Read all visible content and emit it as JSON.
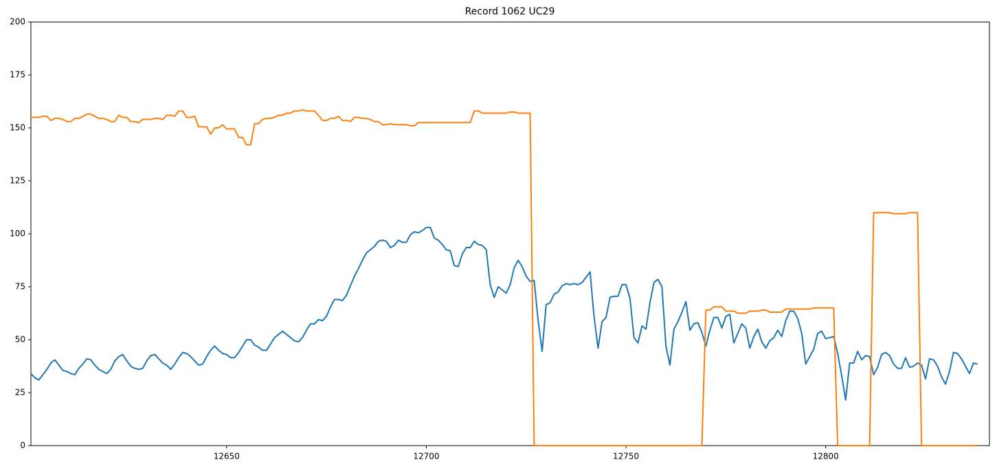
{
  "chart_data": {
    "type": "line",
    "title": "Record 1062 UC29",
    "x": [
      12601,
      12602,
      12603,
      12604,
      12605,
      12606,
      12607,
      12608,
      12609,
      12610,
      12611,
      12612,
      12613,
      12614,
      12615,
      12616,
      12617,
      12618,
      12619,
      12620,
      12621,
      12622,
      12623,
      12624,
      12625,
      12626,
      12627,
      12628,
      12629,
      12630,
      12631,
      12632,
      12633,
      12634,
      12635,
      12636,
      12637,
      12638,
      12639,
      12640,
      12641,
      12642,
      12643,
      12644,
      12645,
      12646,
      12647,
      12648,
      12649,
      12650,
      12651,
      12652,
      12653,
      12654,
      12655,
      12656,
      12657,
      12658,
      12659,
      12660,
      12661,
      12662,
      12663,
      12664,
      12665,
      12666,
      12667,
      12668,
      12669,
      12670,
      12671,
      12672,
      12673,
      12674,
      12675,
      12676,
      12677,
      12678,
      12679,
      12680,
      12681,
      12682,
      12683,
      12684,
      12685,
      12686,
      12687,
      12688,
      12689,
      12690,
      12691,
      12692,
      12693,
      12694,
      12695,
      12696,
      12697,
      12698,
      12699,
      12700,
      12701,
      12702,
      12703,
      12704,
      12705,
      12706,
      12707,
      12708,
      12709,
      12710,
      12711,
      12712,
      12713,
      12714,
      12715,
      12716,
      12717,
      12718,
      12719,
      12720,
      12721,
      12722,
      12723,
      12724,
      12725,
      12726,
      12727,
      12728,
      12729,
      12730,
      12731,
      12732,
      12733,
      12734,
      12735,
      12736,
      12737,
      12738,
      12739,
      12740,
      12741,
      12742,
      12743,
      12744,
      12745,
      12746,
      12747,
      12748,
      12749,
      12750,
      12751,
      12752,
      12753,
      12754,
      12755,
      12756,
      12757,
      12758,
      12759,
      12760,
      12761,
      12762,
      12763,
      12764,
      12765,
      12766,
      12767,
      12768,
      12769,
      12770,
      12771,
      12772,
      12773,
      12774,
      12775,
      12776,
      12777,
      12778,
      12779,
      12780,
      12781,
      12782,
      12783,
      12784,
      12785,
      12786,
      12787,
      12788,
      12789,
      12790,
      12791,
      12792,
      12793,
      12794,
      12795,
      12796,
      12797,
      12798,
      12799,
      12800,
      12801,
      12802,
      12803,
      12804,
      12805,
      12806,
      12807,
      12808,
      12809,
      12810,
      12811,
      12812,
      12813,
      12814,
      12815,
      12816,
      12817,
      12818,
      12819,
      12820,
      12821,
      12822,
      12823,
      12824,
      12825,
      12826,
      12827,
      12828,
      12829,
      12830,
      12831,
      12832,
      12833,
      12834,
      12835,
      12836,
      12837,
      12838
    ],
    "series": [
      {
        "color": "#1f77b4",
        "values": [
          34,
          32,
          31,
          33.5,
          36,
          39,
          40.5,
          38,
          35.5,
          35,
          34,
          33.5,
          36.5,
          38.5,
          41,
          40.5,
          38,
          36,
          35,
          34,
          36,
          40,
          42,
          43,
          40,
          37.5,
          36.5,
          36,
          36.5,
          40,
          42.5,
          43,
          41,
          39,
          38,
          36,
          38.5,
          41.5,
          44,
          43.5,
          42,
          40,
          38,
          38.5,
          42,
          45,
          47,
          45,
          43.5,
          43,
          41.5,
          41.5,
          44,
          47,
          50,
          50,
          47.5,
          46.5,
          45,
          45,
          48,
          51,
          52.5,
          54,
          52.5,
          51,
          49.5,
          49,
          51,
          54.5,
          57.5,
          57.5,
          59.5,
          59,
          61,
          65.5,
          69,
          69,
          68.5,
          71,
          75.5,
          80,
          83.5,
          87.5,
          91,
          92.5,
          94,
          96.5,
          97,
          96.5,
          93.5,
          94.5,
          97,
          96,
          96,
          99.5,
          101,
          100.5,
          101.5,
          103,
          103,
          98,
          97,
          95,
          92.5,
          92,
          85,
          84.5,
          90.5,
          93.5,
          93.5,
          96.5,
          95,
          94.5,
          92.5,
          76,
          70,
          75,
          73.5,
          72,
          76,
          84,
          87.5,
          84.5,
          80,
          77.5,
          78,
          59,
          44.5,
          66.5,
          67.5,
          71.5,
          72.5,
          75.5,
          76.5,
          76,
          76.5,
          76,
          77,
          79.5,
          82,
          61,
          46,
          58.5,
          60.5,
          70,
          70.5,
          70.5,
          76,
          76,
          69.5,
          51,
          48.5,
          56.5,
          55,
          67.5,
          77,
          78.5,
          75,
          47,
          38,
          55,
          58.5,
          63,
          68,
          54.5,
          57.5,
          58,
          53.5,
          47,
          54.5,
          60.5,
          60.5,
          55.5,
          61,
          62,
          48.5,
          53,
          57.5,
          55.5,
          46,
          51.5,
          55,
          49,
          46,
          49.5,
          51,
          54.5,
          51.5,
          59,
          63.5,
          63.5,
          60,
          53,
          38.5,
          42,
          45.5,
          53,
          54,
          50.5,
          51,
          51.5,
          43.5,
          33,
          21.5,
          39,
          39,
          44.5,
          40.5,
          42.5,
          42,
          33.5,
          37,
          43,
          44,
          42.5,
          38.5,
          36.5,
          36.5,
          41.5,
          37,
          37.5,
          39,
          38,
          31.5,
          41,
          40.5,
          37.5,
          32.5,
          29,
          35,
          44,
          43.5,
          41,
          37.5,
          34,
          39,
          38.5
        ]
      },
      {
        "color": "#ff7f0e",
        "values": [
          155,
          155,
          155,
          155.5,
          155.5,
          153.5,
          154.5,
          154.5,
          154,
          153,
          153,
          154.5,
          154.5,
          155.5,
          156.5,
          156.5,
          155.5,
          154.5,
          154.5,
          154,
          153,
          153,
          156,
          155,
          155,
          153,
          153,
          152.5,
          154,
          154,
          154,
          154.5,
          154.5,
          154,
          156,
          156,
          155.5,
          158,
          158,
          155,
          155,
          155.5,
          150.5,
          150.5,
          150.5,
          147,
          150,
          150,
          151.5,
          149.5,
          149.5,
          149.5,
          145.5,
          145.5,
          142,
          142,
          152,
          152,
          154,
          154.5,
          154.5,
          155,
          156,
          156,
          157,
          157,
          158,
          158,
          158.5,
          158,
          158,
          158,
          156,
          153.5,
          153.5,
          154.5,
          154.5,
          155.5,
          153.5,
          153.5,
          153,
          155,
          155,
          154.5,
          154.5,
          154,
          153,
          153,
          151.5,
          151.5,
          152,
          151.5,
          151.5,
          151.5,
          151.5,
          151,
          151,
          152.5,
          152.5,
          152.5,
          152.5,
          152.5,
          152.5,
          152.5,
          152.5,
          152.5,
          152.5,
          152.5,
          152.5,
          152.5,
          152.5,
          158,
          158,
          157,
          157,
          157,
          157,
          157,
          157,
          157,
          157.5,
          157.5,
          157,
          157,
          157,
          157,
          0,
          0,
          0,
          0,
          0,
          0,
          0,
          0,
          0,
          0,
          0,
          0,
          0,
          0,
          0,
          0,
          0,
          0,
          0,
          0,
          0,
          0,
          0,
          0,
          0,
          0,
          0,
          0,
          0,
          0,
          0,
          0,
          0,
          0,
          0,
          0,
          0,
          0,
          0,
          0,
          0,
          0,
          0,
          64,
          64,
          65.5,
          65.5,
          65.5,
          63.5,
          63.5,
          63.5,
          62.5,
          62.5,
          62.5,
          63.5,
          63.5,
          63.5,
          64,
          64,
          63,
          63,
          63,
          63,
          64.5,
          64.5,
          64.5,
          64.5,
          64.5,
          64.5,
          64.5,
          65,
          65,
          65,
          65,
          65,
          65,
          0,
          0,
          0,
          0,
          0,
          0,
          0,
          0,
          0,
          110,
          110,
          110,
          110,
          110,
          109.5,
          109.5,
          109.5,
          109.5,
          110,
          110,
          110,
          0,
          0,
          0,
          0,
          0,
          0,
          0,
          0,
          0,
          0,
          0,
          0,
          0,
          0,
          0
        ]
      }
    ],
    "xlim": [
      12601,
      12841
    ],
    "xticks": [
      12650,
      12700,
      12750,
      12800
    ],
    "ylim": [
      0,
      200
    ],
    "yticks": [
      0,
      25,
      50,
      75,
      100,
      125,
      150,
      175,
      200
    ],
    "grid": false
  }
}
